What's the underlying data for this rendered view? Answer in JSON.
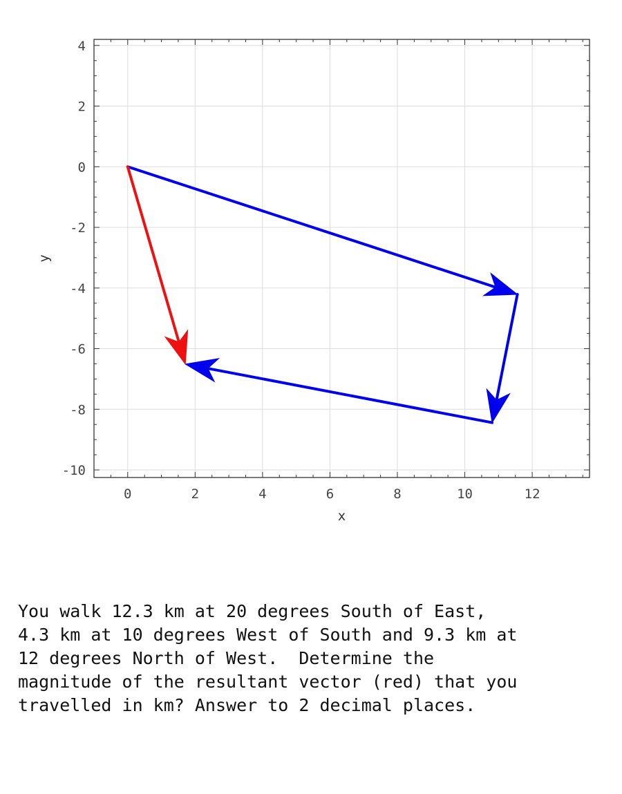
{
  "chart_data": {
    "type": "vector-diagram",
    "xlabel": "x",
    "ylabel": "y",
    "xlim": [
      -1,
      13.7
    ],
    "ylim": [
      -10.25,
      4.2
    ],
    "xticks": [
      0,
      2,
      4,
      6,
      8,
      10,
      12
    ],
    "yticks": [
      4,
      2,
      0,
      -2,
      -4,
      -6,
      -8,
      -10
    ],
    "grid": true,
    "vectors": [
      {
        "from": [
          0,
          0
        ],
        "to": [
          11.56,
          -4.21
        ],
        "color": "#0000ee"
      },
      {
        "from": [
          11.56,
          -4.21
        ],
        "to": [
          10.81,
          -8.44
        ],
        "color": "#0000ee"
      },
      {
        "from": [
          10.81,
          -8.44
        ],
        "to": [
          1.71,
          -6.51
        ],
        "color": "#0000ee"
      },
      {
        "from": [
          0,
          0
        ],
        "to": [
          1.71,
          -6.51
        ],
        "color": "#ee1111"
      }
    ]
  },
  "question": "You walk 12.3 km at 20 degrees South of East,\n4.3 km at 10 degrees West of South and 9.3 km at\n12 degrees North of West.  Determine the\nmagnitude of the resultant vector (red) that you\ntravelled in km? Answer to 2 decimal places."
}
